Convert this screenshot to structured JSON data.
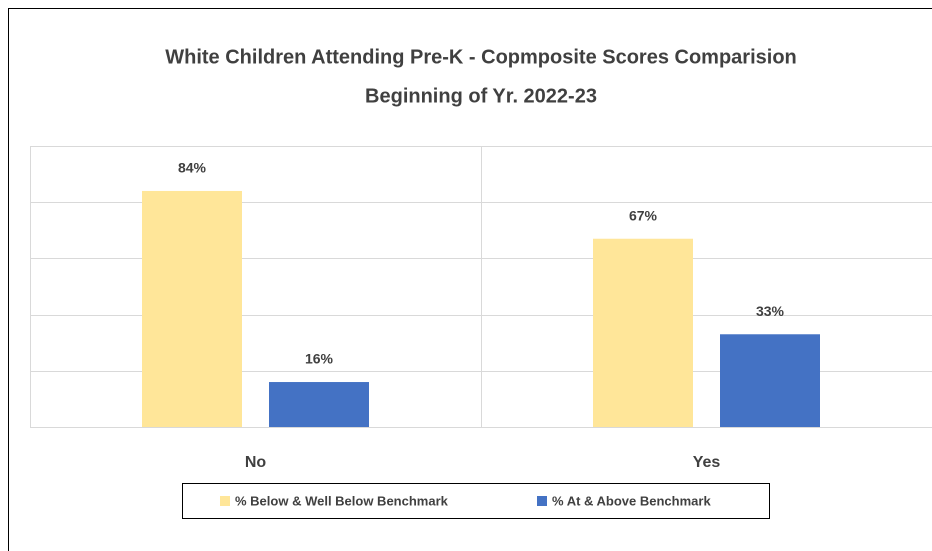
{
  "chart_data": {
    "type": "bar",
    "title": "White Children Attending Pre-K - Copmposite Scores Comparision",
    "subtitle": "Beginning of Yr. 2022-23",
    "categories": [
      "No",
      "Yes"
    ],
    "series": [
      {
        "name": "% Below & Well Below Benchmark",
        "color": "#ffe699",
        "values": [
          84,
          67
        ],
        "value_labels": [
          "84%",
          "67%"
        ]
      },
      {
        "name": "% At & Above Benchmark",
        "color": "#4472c4",
        "values": [
          16,
          33
        ],
        "value_labels": [
          "16%",
          "33%"
        ]
      }
    ],
    "ylim": [
      0,
      100
    ],
    "yticks": [
      0,
      20,
      40,
      60,
      80,
      100
    ],
    "grid": true,
    "legend": "bottom"
  }
}
